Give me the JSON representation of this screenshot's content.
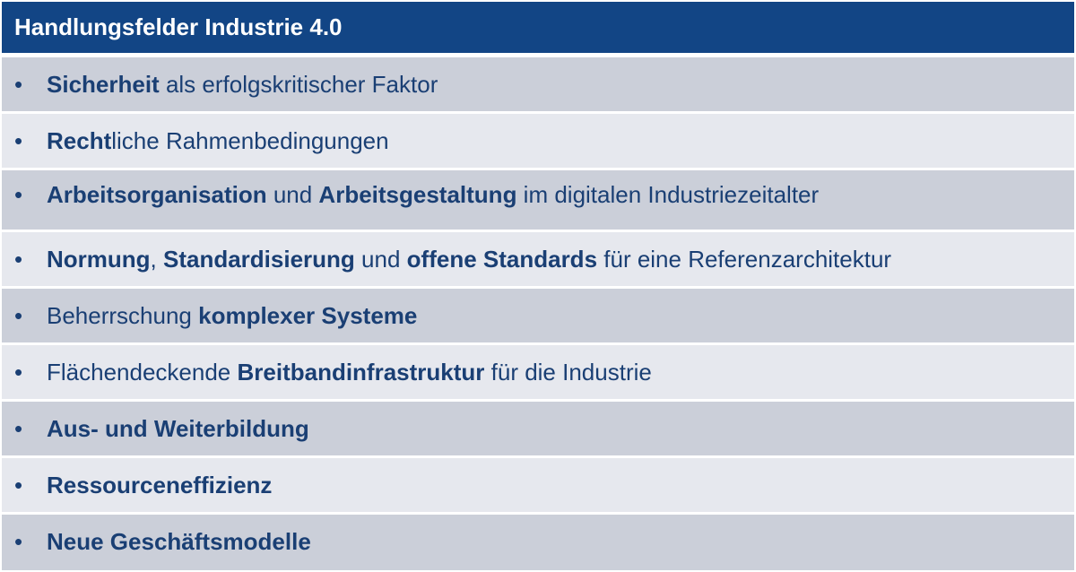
{
  "header": {
    "title": "Handlungsfelder Industrie 4.0"
  },
  "bullet": "•",
  "rows": [
    {
      "parts": [
        {
          "text": "Sicherheit",
          "bold": true
        },
        {
          "text": " als erfolgskritischer Faktor",
          "bold": false
        }
      ]
    },
    {
      "parts": [
        {
          "text": "Recht",
          "bold": true
        },
        {
          "text": "liche Rahmenbedingungen",
          "bold": false
        }
      ]
    },
    {
      "parts": [
        {
          "text": "Arbeitsorganisation",
          "bold": true
        },
        {
          "text": " und ",
          "bold": false
        },
        {
          "text": "Arbeitsgestaltung",
          "bold": true
        },
        {
          "text": " im digitalen Industriezeitalter",
          "bold": false
        }
      ]
    },
    {
      "parts": [
        {
          "text": "Normung",
          "bold": true
        },
        {
          "text": ", ",
          "bold": false
        },
        {
          "text": "Standardisierung",
          "bold": true
        },
        {
          "text": " und ",
          "bold": false
        },
        {
          "text": "offene Standards",
          "bold": true
        },
        {
          "text": " für eine Referenzarchitektur",
          "bold": false
        }
      ]
    },
    {
      "parts": [
        {
          "text": "Beherrschung ",
          "bold": false
        },
        {
          "text": "komplexer Systeme",
          "bold": true
        }
      ]
    },
    {
      "parts": [
        {
          "text": "Flächendeckende ",
          "bold": false
        },
        {
          "text": "Breitbandinfrastruktur",
          "bold": true
        },
        {
          "text": " für die Industrie",
          "bold": false
        }
      ]
    },
    {
      "parts": [
        {
          "text": "Aus- und Weiterbildung",
          "bold": true
        }
      ]
    },
    {
      "parts": [
        {
          "text": "Ressourceneffizienz",
          "bold": true
        }
      ]
    },
    {
      "parts": [
        {
          "text": "Neue Geschäftsmodelle",
          "bold": true
        }
      ]
    }
  ],
  "colors": {
    "header_bg": "#124585",
    "header_text": "#ffffff",
    "row_dark": "#cbcfd9",
    "row_light": "#e6e8ee",
    "text": "#1a3f74"
  }
}
